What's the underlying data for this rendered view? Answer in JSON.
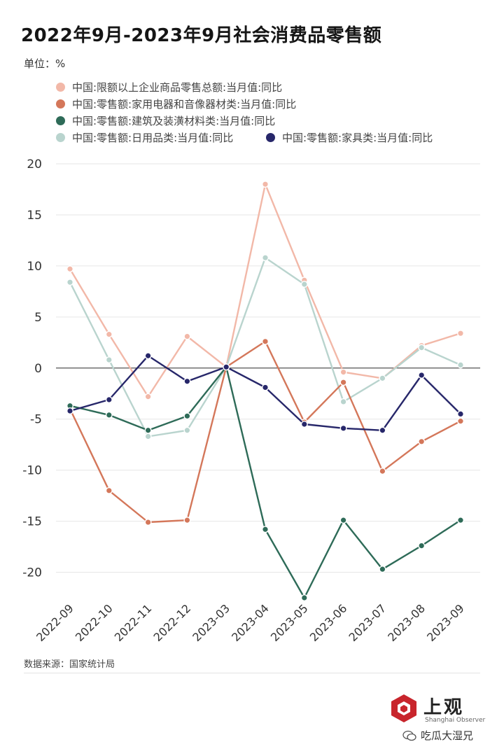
{
  "title": "2022年9月-2023年9月社会消费品零售额",
  "unit": "单位：%",
  "source": "数据来源：国家统计局",
  "logo": {
    "text": "上观",
    "sub": "Shanghai Observer"
  },
  "watermark": "吃瓜大湿兄",
  "legend": [
    {
      "label": "中国:限额以上企业商品零售总额:当月值:同比",
      "color": "#f2b8a8"
    },
    {
      "label": "中国:零售额:家用电器和音像器材类:当月值:同比",
      "color": "#d4775a"
    },
    {
      "label": "中国:零售额:建筑及装潢材料类:当月值:同比",
      "color": "#2e6b58"
    },
    {
      "label": "中国:零售额:日用品类:当月值:同比",
      "color": "#b9d4ce"
    },
    {
      "label": "中国:零售额:家具类:当月值:同比",
      "color": "#27276a"
    }
  ],
  "chart_data": {
    "type": "line",
    "title": "2022年9月-2023年9月社会消费品零售额",
    "ylabel": "%",
    "ylim": [
      -22.5,
      20
    ],
    "yticks": [
      20,
      15,
      10,
      5,
      0,
      -5,
      -10,
      -15,
      -20
    ],
    "ytick_labels": [
      "20",
      "15",
      "10",
      "5",
      "0",
      "-5",
      "-10",
      "-15",
      "-20"
    ],
    "categories": [
      "2022-09",
      "2022-10",
      "2022-11",
      "2022-12",
      "2023-03",
      "2023-04",
      "2023-05",
      "2023-06",
      "2023-07",
      "2023-08",
      "2023-09"
    ],
    "series": [
      {
        "name": "中国:限额以上企业商品零售总额:当月值:同比",
        "color": "#f2b8a8",
        "values": [
          9.7,
          3.3,
          -2.8,
          3.1,
          0.1,
          18.0,
          8.6,
          -0.4,
          -1.0,
          2.2,
          3.4
        ]
      },
      {
        "name": "中国:零售额:日用品类:当月值:同比",
        "color": "#b9d4ce",
        "values": [
          8.4,
          0.8,
          -6.7,
          -6.1,
          0.1,
          10.8,
          8.2,
          -3.3,
          -1.0,
          2.0,
          0.3
        ]
      },
      {
        "name": "中国:零售额:家用电器和音像器材类:当月值:同比",
        "color": "#d4775a",
        "values": [
          -4.0,
          -12.0,
          -15.1,
          -14.9,
          0.1,
          2.6,
          -5.3,
          -1.4,
          -10.1,
          -7.2,
          -5.2
        ]
      },
      {
        "name": "中国:零售额:建筑及装潢材料类:当月值:同比",
        "color": "#2e6b58",
        "values": [
          -3.7,
          -4.6,
          -6.1,
          -4.7,
          0.1,
          -15.8,
          -22.5,
          -14.9,
          -19.7,
          -17.4,
          -14.9
        ]
      },
      {
        "name": "中国:零售额:家具类:当月值:同比",
        "color": "#27276a",
        "values": [
          -4.2,
          -3.1,
          1.2,
          -1.3,
          0.1,
          -1.9,
          -5.5,
          -5.9,
          -6.1,
          -0.7,
          -4.5
        ]
      }
    ]
  }
}
